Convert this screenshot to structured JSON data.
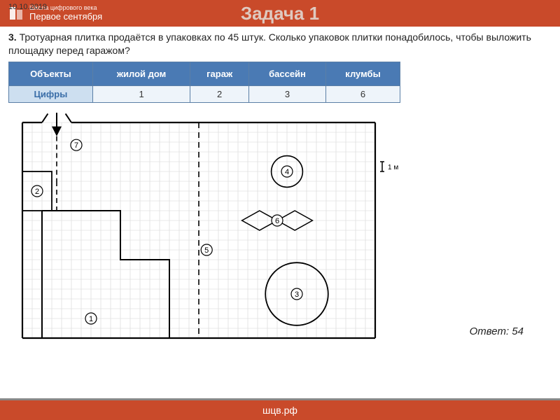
{
  "header": {
    "date": "10.10.2019",
    "brand_top": "Школа цифрового века",
    "brand_main": "Первое сентября",
    "title": "Задача 1"
  },
  "question": {
    "num": "3.",
    "text": "Тротуарная плитка продаётся в упаковках по 45 штук. Сколько упаковок плитки понадобилось, чтобы выложить площадку перед гаражом?"
  },
  "table": {
    "head": [
      "Объекты",
      "жилой дом",
      "гараж",
      "бассейн",
      "клумбы"
    ],
    "row_label": "Цифры",
    "row": [
      "1",
      "2",
      "3",
      "6"
    ]
  },
  "plan": {
    "scale_label": "1 м",
    "grid_step": 14,
    "cols": 36,
    "rows": 22,
    "grid_color": "#d6d6d6",
    "line_color": "#000",
    "labels": [
      "1",
      "2",
      "3",
      "4",
      "5",
      "6",
      "7"
    ]
  },
  "answer": "Ответ: 54",
  "footer": "шцв.рф"
}
